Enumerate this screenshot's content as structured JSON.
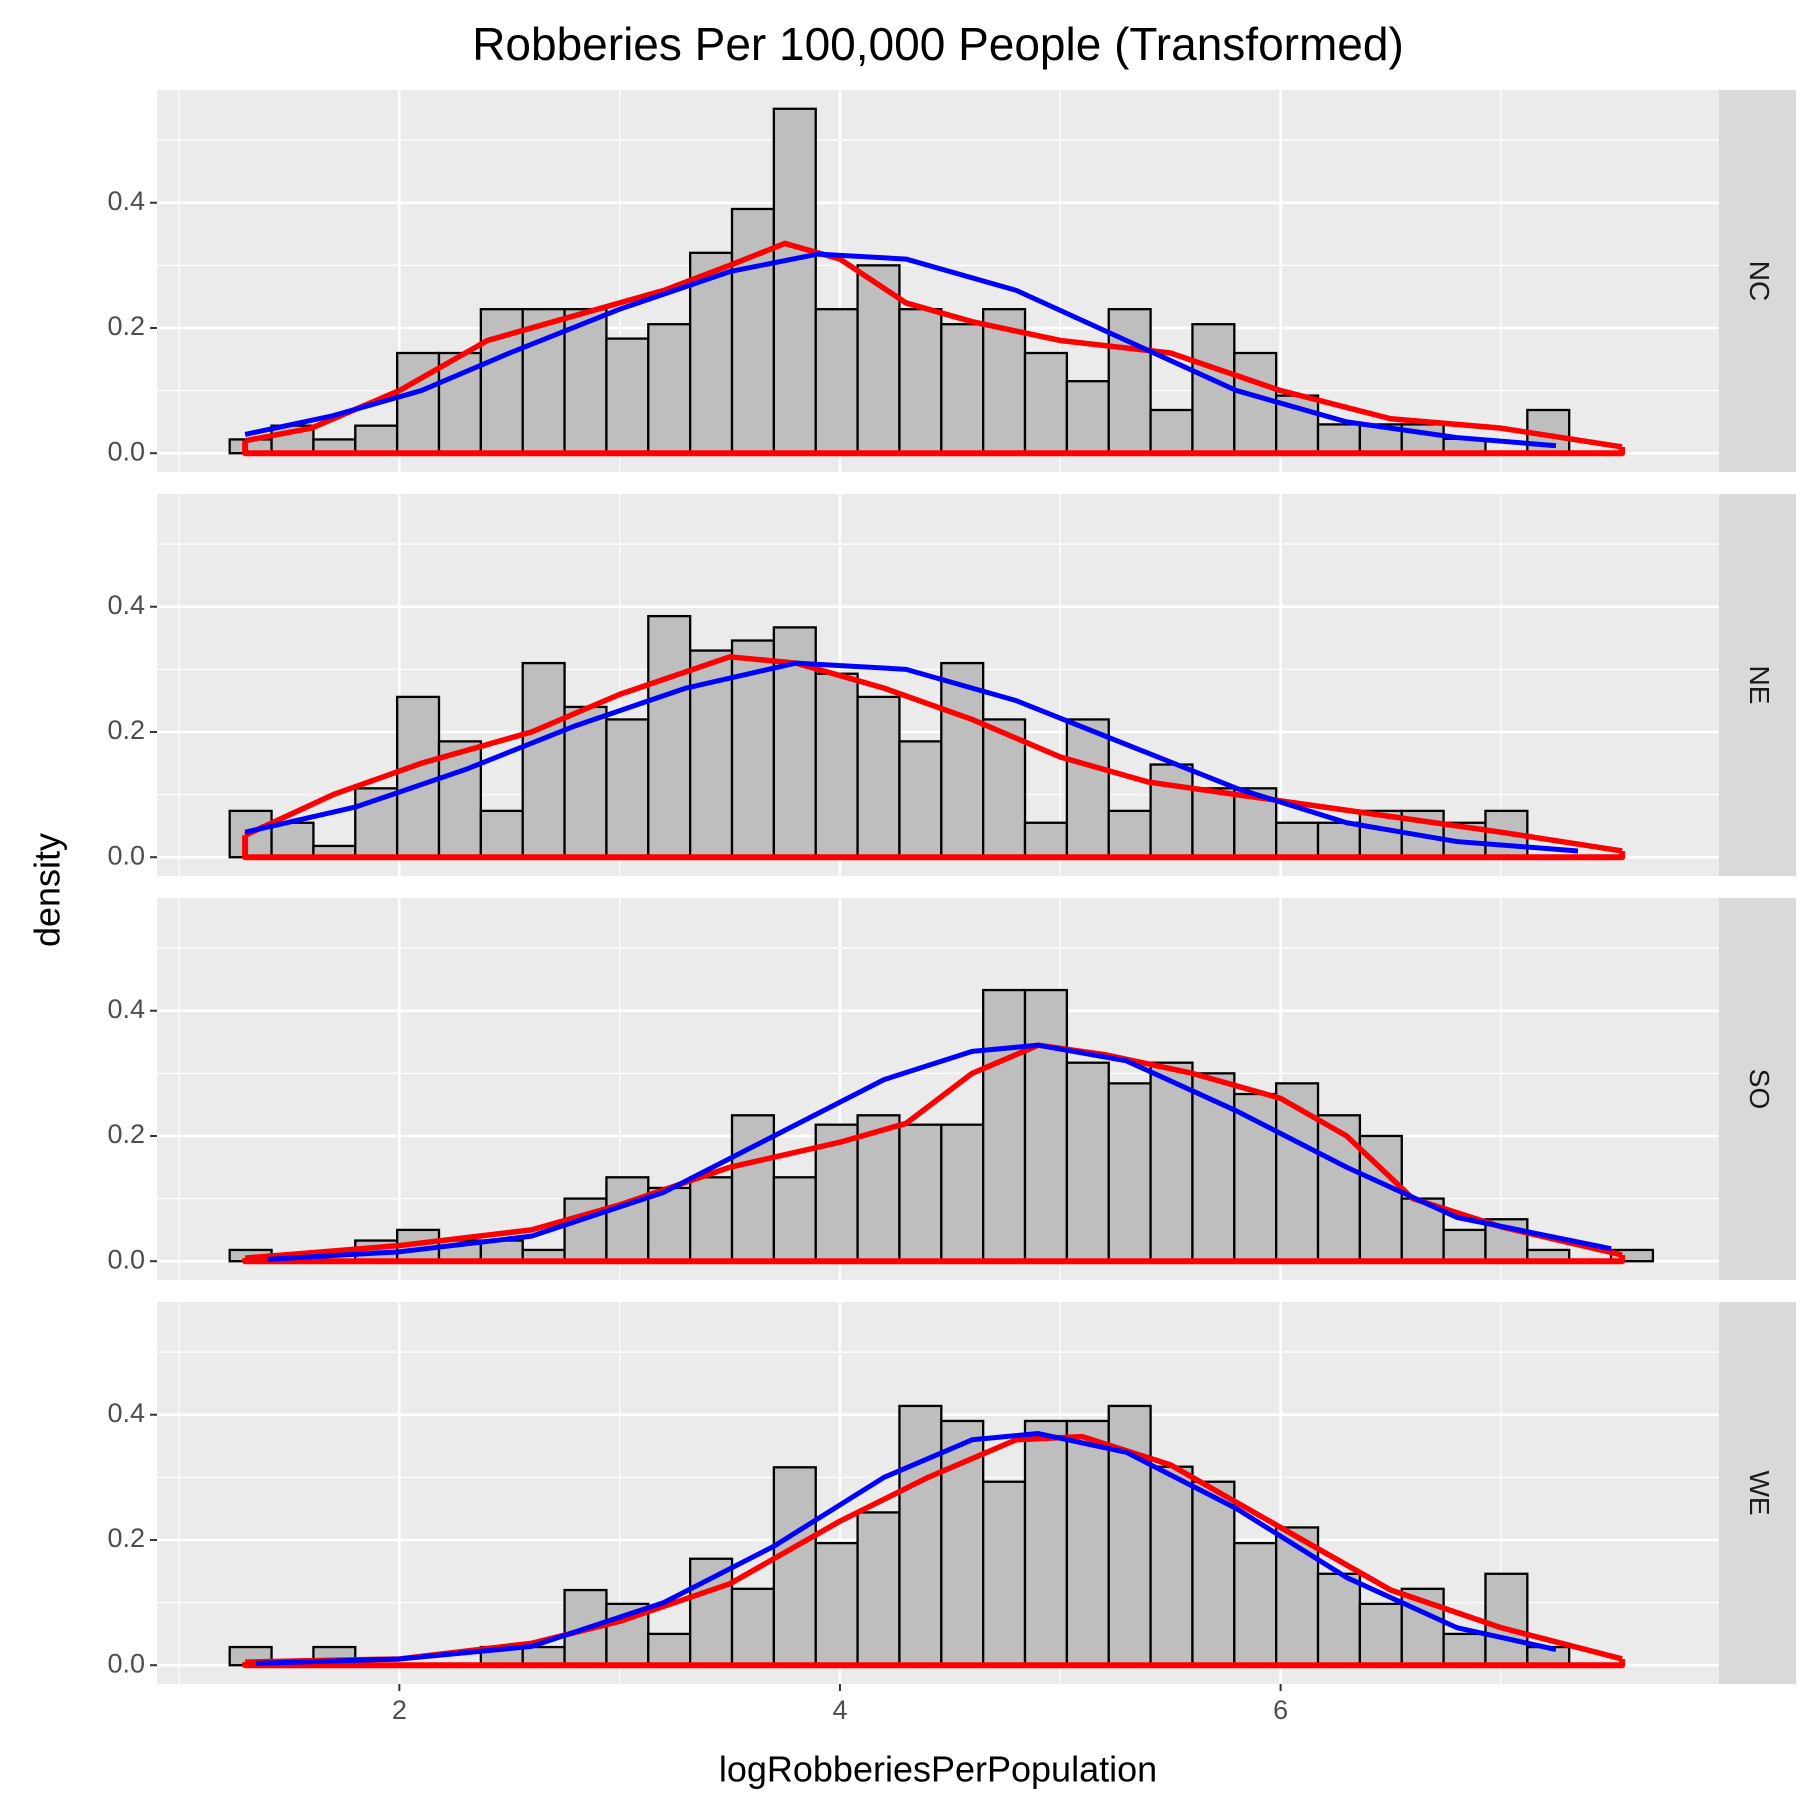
{
  "title": "Robberies Per 100,000 People (Transformed)",
  "xlabel": "logRobberiesPerPopulation",
  "ylabel": "density",
  "chart_data": [
    {
      "type": "histogram",
      "facet": "NC",
      "color": "#bebebe",
      "grid": true,
      "bins": [
        1.23,
        1.42,
        1.61,
        1.8,
        1.99,
        2.18,
        2.37,
        2.56,
        2.75,
        2.94,
        3.13,
        3.32,
        3.51,
        3.7,
        3.89,
        4.08,
        4.27,
        4.46,
        4.65,
        4.84,
        5.03,
        5.22,
        5.41,
        5.6,
        5.79,
        5.98,
        6.17,
        6.36,
        6.55,
        6.74,
        6.93,
        7.12,
        7.31,
        7.5,
        7.69
      ],
      "values": [
        0.022,
        0.044,
        0.022,
        0.044,
        0.16,
        0.16,
        0.23,
        0.23,
        0.23,
        0.183,
        0.206,
        0.32,
        0.39,
        0.55,
        0.23,
        0.3,
        0.23,
        0.206,
        0.23,
        0.16,
        0.115,
        0.23,
        0.069,
        0.206,
        0.16,
        0.092,
        0.046,
        0.046,
        0.046,
        0.023,
        0,
        0.069,
        0,
        0
      ],
      "curves": [
        {
          "color": "#ff0000",
          "x": [
            1.3,
            1.6,
            2.0,
            2.4,
            2.8,
            3.2,
            3.5,
            3.75,
            4.0,
            4.3,
            4.6,
            5.0,
            5.5,
            6.0,
            6.5,
            7.0,
            7.55
          ],
          "values": [
            0.02,
            0.04,
            0.1,
            0.18,
            0.22,
            0.26,
            0.3,
            0.335,
            0.31,
            0.24,
            0.21,
            0.18,
            0.16,
            0.1,
            0.055,
            0.04,
            0.01
          ]
        },
        {
          "color": "#0000ff",
          "x": [
            1.3,
            1.7,
            2.1,
            2.5,
            3.0,
            3.5,
            3.9,
            4.3,
            4.8,
            5.3,
            5.8,
            6.3,
            6.8,
            7.25
          ],
          "values": [
            0.03,
            0.06,
            0.1,
            0.16,
            0.23,
            0.29,
            0.318,
            0.31,
            0.26,
            0.18,
            0.1,
            0.05,
            0.025,
            0.012
          ]
        }
      ],
      "xlim": [
        0.9,
        7.99
      ],
      "xticks": [
        2,
        4,
        6
      ],
      "ylim": [
        -0.03,
        0.58
      ],
      "yticks": [
        {
          "value": 0,
          "label": "0.0"
        },
        0.2,
        0.4
      ]
    },
    {
      "type": "histogram",
      "facet": "NE",
      "color": "#bebebe",
      "grid": true,
      "bins": [
        1.23,
        1.42,
        1.61,
        1.8,
        1.99,
        2.18,
        2.37,
        2.56,
        2.75,
        2.94,
        3.13,
        3.32,
        3.51,
        3.7,
        3.89,
        4.08,
        4.27,
        4.46,
        4.65,
        4.84,
        5.03,
        5.22,
        5.41,
        5.6,
        5.79,
        5.98,
        6.17,
        6.36,
        6.55,
        6.74,
        6.93,
        7.12,
        7.31,
        7.5,
        7.69
      ],
      "values": [
        0.074,
        0.055,
        0.018,
        0.11,
        0.256,
        0.185,
        0.074,
        0.31,
        0.24,
        0.22,
        0.385,
        0.33,
        0.346,
        0.367,
        0.293,
        0.256,
        0.185,
        0.31,
        0.22,
        0.055,
        0.22,
        0.074,
        0.148,
        0.11,
        0.11,
        0.055,
        0.055,
        0.074,
        0.074,
        0.055,
        0.074,
        0,
        0,
        0
      ],
      "curves": [
        {
          "color": "#ff0000",
          "x": [
            1.3,
            1.7,
            2.1,
            2.6,
            3.0,
            3.5,
            3.8,
            4.2,
            4.6,
            5.0,
            5.4,
            5.8,
            6.2,
            6.6,
            7.0,
            7.55
          ],
          "values": [
            0.035,
            0.1,
            0.15,
            0.2,
            0.26,
            0.32,
            0.31,
            0.27,
            0.22,
            0.16,
            0.12,
            0.1,
            0.08,
            0.06,
            0.04,
            0.01
          ]
        },
        {
          "color": "#0000ff",
          "x": [
            1.3,
            1.8,
            2.3,
            2.8,
            3.3,
            3.8,
            4.3,
            4.8,
            5.3,
            5.8,
            6.3,
            6.8,
            7.35
          ],
          "values": [
            0.04,
            0.08,
            0.14,
            0.21,
            0.27,
            0.31,
            0.3,
            0.25,
            0.18,
            0.11,
            0.055,
            0.025,
            0.01
          ]
        }
      ],
      "xlim": [
        0.9,
        7.99
      ],
      "xticks": [
        2,
        4,
        6
      ],
      "ylim": [
        -0.03,
        0.58
      ],
      "yticks": [
        {
          "value": 0,
          "label": "0.0"
        },
        0.2,
        0.4
      ]
    },
    {
      "type": "histogram",
      "facet": "SO",
      "color": "#bebebe",
      "grid": true,
      "bins": [
        1.23,
        1.42,
        1.61,
        1.8,
        1.99,
        2.18,
        2.37,
        2.56,
        2.75,
        2.94,
        3.13,
        3.32,
        3.51,
        3.7,
        3.89,
        4.08,
        4.27,
        4.46,
        4.65,
        4.84,
        5.03,
        5.22,
        5.41,
        5.6,
        5.79,
        5.98,
        6.17,
        6.36,
        6.55,
        6.74,
        6.93,
        7.12,
        7.31,
        7.5,
        7.69
      ],
      "values": [
        0.018,
        0,
        0,
        0.033,
        0.05,
        0.033,
        0.033,
        0.018,
        0.1,
        0.134,
        0.117,
        0.134,
        0.233,
        0.134,
        0.218,
        0.233,
        0.218,
        0.218,
        0.433,
        0.433,
        0.317,
        0.284,
        0.317,
        0.3,
        0.267,
        0.284,
        0.233,
        0.2,
        0.1,
        0.05,
        0.067,
        0.018,
        0,
        0.018
      ],
      "curves": [
        {
          "color": "#ff0000",
          "x": [
            1.3,
            2.0,
            2.6,
            3.0,
            3.5,
            4.0,
            4.3,
            4.6,
            4.9,
            5.2,
            5.6,
            6.0,
            6.3,
            6.6,
            7.0,
            7.55
          ],
          "values": [
            0.005,
            0.025,
            0.05,
            0.09,
            0.15,
            0.19,
            0.22,
            0.3,
            0.345,
            0.33,
            0.3,
            0.26,
            0.2,
            0.1,
            0.055,
            0.01
          ]
        },
        {
          "color": "#0000ff",
          "x": [
            1.4,
            2.0,
            2.6,
            3.2,
            3.7,
            4.2,
            4.6,
            4.9,
            5.3,
            5.8,
            6.3,
            6.8,
            7.5
          ],
          "values": [
            0.003,
            0.015,
            0.04,
            0.11,
            0.2,
            0.29,
            0.335,
            0.345,
            0.32,
            0.24,
            0.15,
            0.07,
            0.02
          ]
        }
      ],
      "xlim": [
        0.9,
        7.99
      ],
      "xticks": [
        2,
        4,
        6
      ],
      "ylim": [
        -0.03,
        0.58
      ],
      "yticks": [
        {
          "value": 0,
          "label": "0.0"
        },
        0.2,
        0.4
      ]
    },
    {
      "type": "histogram",
      "facet": "WE",
      "color": "#bebebe",
      "grid": true,
      "bins": [
        1.23,
        1.42,
        1.61,
        1.8,
        1.99,
        2.18,
        2.37,
        2.56,
        2.75,
        2.94,
        3.13,
        3.32,
        3.51,
        3.7,
        3.89,
        4.08,
        4.27,
        4.46,
        4.65,
        4.84,
        5.03,
        5.22,
        5.41,
        5.6,
        5.79,
        5.98,
        6.17,
        6.36,
        6.55,
        6.74,
        6.93,
        7.12,
        7.31,
        7.5,
        7.69
      ],
      "values": [
        0.029,
        0,
        0.029,
        0,
        0,
        0,
        0.029,
        0.029,
        0.12,
        0.098,
        0.05,
        0.17,
        0.122,
        0.316,
        0.195,
        0.244,
        0.414,
        0.39,
        0.293,
        0.39,
        0.39,
        0.414,
        0.317,
        0.293,
        0.195,
        0.22,
        0.146,
        0.098,
        0.122,
        0.05,
        0.146,
        0.029,
        0,
        0
      ],
      "curves": [
        {
          "color": "#ff0000",
          "x": [
            1.3,
            2.0,
            2.6,
            3.0,
            3.5,
            4.0,
            4.4,
            4.8,
            5.1,
            5.5,
            6.0,
            6.5,
            7.0,
            7.55
          ],
          "values": [
            0.005,
            0.01,
            0.035,
            0.07,
            0.13,
            0.23,
            0.3,
            0.36,
            0.365,
            0.32,
            0.22,
            0.12,
            0.06,
            0.01
          ]
        },
        {
          "color": "#0000ff",
          "x": [
            1.35,
            2.0,
            2.6,
            3.2,
            3.7,
            4.2,
            4.6,
            4.9,
            5.3,
            5.8,
            6.3,
            6.8,
            7.25
          ],
          "values": [
            0.003,
            0.01,
            0.03,
            0.1,
            0.19,
            0.3,
            0.36,
            0.37,
            0.34,
            0.25,
            0.14,
            0.06,
            0.025
          ]
        }
      ],
      "xlim": [
        0.9,
        7.99
      ],
      "xticks": [
        2,
        4,
        6
      ],
      "ylim": [
        -0.03,
        0.58
      ],
      "yticks": [
        {
          "value": 0,
          "label": "0.0"
        },
        0.2,
        0.4
      ]
    }
  ]
}
